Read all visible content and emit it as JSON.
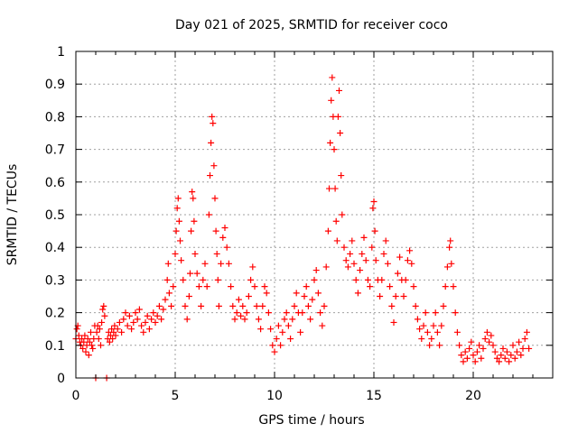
{
  "chart_data": {
    "type": "scatter",
    "title": "Day 021 of 2025, SRMTID for receiver coco",
    "xlabel": "GPS time / hours",
    "ylabel": "SRMTID / TECUs",
    "xlim": [
      0,
      24
    ],
    "ylim": [
      0,
      1
    ],
    "xticks": [
      0,
      5,
      10,
      15,
      20
    ],
    "yticks": [
      0,
      0.1,
      0.2,
      0.3,
      0.4,
      0.5,
      0.6,
      0.7,
      0.8,
      0.9,
      1
    ],
    "grid": true,
    "marker": "plus",
    "color": "#ff0000",
    "series": [
      {
        "name": "SRMTID",
        "points": [
          [
            0.0,
            0.12
          ],
          [
            0.05,
            0.15
          ],
          [
            0.1,
            0.16
          ],
          [
            0.15,
            0.13
          ],
          [
            0.2,
            0.11
          ],
          [
            0.25,
            0.1
          ],
          [
            0.3,
            0.12
          ],
          [
            0.35,
            0.09
          ],
          [
            0.4,
            0.11
          ],
          [
            0.45,
            0.13
          ],
          [
            0.5,
            0.08
          ],
          [
            0.55,
            0.1
          ],
          [
            0.6,
            0.12
          ],
          [
            0.65,
            0.07
          ],
          [
            0.7,
            0.11
          ],
          [
            0.75,
            0.14
          ],
          [
            0.8,
            0.1
          ],
          [
            0.85,
            0.09
          ],
          [
            0.9,
            0.12
          ],
          [
            0.95,
            0.16
          ],
          [
            1.0,
            0.0
          ],
          [
            1.05,
            0.14
          ],
          [
            1.1,
            0.16
          ],
          [
            1.15,
            0.12
          ],
          [
            1.2,
            0.15
          ],
          [
            1.25,
            0.1
          ],
          [
            1.3,
            0.17
          ],
          [
            1.35,
            0.21
          ],
          [
            1.4,
            0.22
          ],
          [
            1.45,
            0.19
          ],
          [
            1.55,
            0.0
          ],
          [
            1.6,
            0.12
          ],
          [
            1.65,
            0.14
          ],
          [
            1.7,
            0.11
          ],
          [
            1.75,
            0.13
          ],
          [
            1.8,
            0.15
          ],
          [
            1.85,
            0.12
          ],
          [
            1.9,
            0.14
          ],
          [
            1.95,
            0.16
          ],
          [
            2.0,
            0.13
          ],
          [
            2.1,
            0.15
          ],
          [
            2.2,
            0.17
          ],
          [
            2.3,
            0.14
          ],
          [
            2.4,
            0.18
          ],
          [
            2.5,
            0.2
          ],
          [
            2.6,
            0.16
          ],
          [
            2.7,
            0.19
          ],
          [
            2.8,
            0.15
          ],
          [
            2.9,
            0.17
          ],
          [
            3.0,
            0.2
          ],
          [
            3.1,
            0.18
          ],
          [
            3.2,
            0.21
          ],
          [
            3.3,
            0.16
          ],
          [
            3.4,
            0.14
          ],
          [
            3.5,
            0.17
          ],
          [
            3.6,
            0.19
          ],
          [
            3.7,
            0.15
          ],
          [
            3.8,
            0.18
          ],
          [
            3.9,
            0.2
          ],
          [
            4.0,
            0.17
          ],
          [
            4.1,
            0.19
          ],
          [
            4.2,
            0.22
          ],
          [
            4.3,
            0.18
          ],
          [
            4.4,
            0.21
          ],
          [
            4.5,
            0.24
          ],
          [
            4.6,
            0.3
          ],
          [
            4.65,
            0.35
          ],
          [
            4.7,
            0.26
          ],
          [
            4.8,
            0.22
          ],
          [
            4.9,
            0.28
          ],
          [
            5.0,
            0.38
          ],
          [
            5.05,
            0.45
          ],
          [
            5.1,
            0.52
          ],
          [
            5.15,
            0.55
          ],
          [
            5.2,
            0.48
          ],
          [
            5.25,
            0.42
          ],
          [
            5.3,
            0.36
          ],
          [
            5.4,
            0.3
          ],
          [
            5.5,
            0.22
          ],
          [
            5.6,
            0.18
          ],
          [
            5.7,
            0.25
          ],
          [
            5.75,
            0.32
          ],
          [
            5.8,
            0.45
          ],
          [
            5.85,
            0.57
          ],
          [
            5.9,
            0.55
          ],
          [
            5.95,
            0.48
          ],
          [
            6.0,
            0.38
          ],
          [
            6.1,
            0.32
          ],
          [
            6.2,
            0.28
          ],
          [
            6.3,
            0.22
          ],
          [
            6.4,
            0.3
          ],
          [
            6.5,
            0.35
          ],
          [
            6.6,
            0.28
          ],
          [
            6.7,
            0.5
          ],
          [
            6.75,
            0.62
          ],
          [
            6.8,
            0.72
          ],
          [
            6.85,
            0.8
          ],
          [
            6.9,
            0.78
          ],
          [
            6.95,
            0.65
          ],
          [
            7.0,
            0.55
          ],
          [
            7.05,
            0.45
          ],
          [
            7.1,
            0.38
          ],
          [
            7.15,
            0.3
          ],
          [
            7.2,
            0.22
          ],
          [
            7.3,
            0.35
          ],
          [
            7.4,
            0.43
          ],
          [
            7.5,
            0.46
          ],
          [
            7.6,
            0.4
          ],
          [
            7.7,
            0.35
          ],
          [
            7.8,
            0.28
          ],
          [
            7.9,
            0.22
          ],
          [
            8.0,
            0.18
          ],
          [
            8.1,
            0.2
          ],
          [
            8.2,
            0.24
          ],
          [
            8.3,
            0.19
          ],
          [
            8.4,
            0.22
          ],
          [
            8.5,
            0.18
          ],
          [
            8.6,
            0.2
          ],
          [
            8.7,
            0.25
          ],
          [
            8.8,
            0.3
          ],
          [
            8.9,
            0.34
          ],
          [
            9.0,
            0.28
          ],
          [
            9.1,
            0.22
          ],
          [
            9.2,
            0.18
          ],
          [
            9.3,
            0.15
          ],
          [
            9.4,
            0.22
          ],
          [
            9.5,
            0.28
          ],
          [
            9.6,
            0.26
          ],
          [
            9.7,
            0.2
          ],
          [
            9.8,
            0.15
          ],
          [
            9.9,
            0.1
          ],
          [
            10.0,
            0.08
          ],
          [
            10.1,
            0.12
          ],
          [
            10.2,
            0.16
          ],
          [
            10.3,
            0.1
          ],
          [
            10.4,
            0.14
          ],
          [
            10.5,
            0.18
          ],
          [
            10.6,
            0.2
          ],
          [
            10.7,
            0.16
          ],
          [
            10.8,
            0.12
          ],
          [
            10.9,
            0.18
          ],
          [
            11.0,
            0.22
          ],
          [
            11.1,
            0.26
          ],
          [
            11.2,
            0.2
          ],
          [
            11.3,
            0.14
          ],
          [
            11.4,
            0.2
          ],
          [
            11.5,
            0.25
          ],
          [
            11.6,
            0.28
          ],
          [
            11.7,
            0.22
          ],
          [
            11.8,
            0.18
          ],
          [
            11.9,
            0.24
          ],
          [
            12.0,
            0.3
          ],
          [
            12.1,
            0.33
          ],
          [
            12.2,
            0.26
          ],
          [
            12.3,
            0.2
          ],
          [
            12.4,
            0.16
          ],
          [
            12.5,
            0.22
          ],
          [
            12.6,
            0.34
          ],
          [
            12.7,
            0.45
          ],
          [
            12.75,
            0.58
          ],
          [
            12.8,
            0.72
          ],
          [
            12.85,
            0.85
          ],
          [
            12.9,
            0.92
          ],
          [
            12.95,
            0.8
          ],
          [
            13.0,
            0.7
          ],
          [
            13.05,
            0.58
          ],
          [
            13.1,
            0.48
          ],
          [
            13.15,
            0.42
          ],
          [
            13.2,
            0.8
          ],
          [
            13.25,
            0.88
          ],
          [
            13.3,
            0.75
          ],
          [
            13.35,
            0.62
          ],
          [
            13.4,
            0.5
          ],
          [
            13.5,
            0.4
          ],
          [
            13.6,
            0.36
          ],
          [
            13.7,
            0.34
          ],
          [
            13.8,
            0.38
          ],
          [
            13.9,
            0.42
          ],
          [
            14.0,
            0.35
          ],
          [
            14.1,
            0.3
          ],
          [
            14.2,
            0.26
          ],
          [
            14.3,
            0.33
          ],
          [
            14.4,
            0.38
          ],
          [
            14.5,
            0.43
          ],
          [
            14.6,
            0.36
          ],
          [
            14.7,
            0.3
          ],
          [
            14.8,
            0.28
          ],
          [
            14.9,
            0.4
          ],
          [
            14.95,
            0.52
          ],
          [
            15.0,
            0.54
          ],
          [
            15.05,
            0.45
          ],
          [
            15.1,
            0.36
          ],
          [
            15.2,
            0.3
          ],
          [
            15.3,
            0.25
          ],
          [
            15.4,
            0.3
          ],
          [
            15.5,
            0.38
          ],
          [
            15.6,
            0.42
          ],
          [
            15.7,
            0.35
          ],
          [
            15.8,
            0.28
          ],
          [
            15.9,
            0.22
          ],
          [
            16.0,
            0.17
          ],
          [
            16.1,
            0.25
          ],
          [
            16.2,
            0.32
          ],
          [
            16.3,
            0.37
          ],
          [
            16.4,
            0.3
          ],
          [
            16.5,
            0.25
          ],
          [
            16.6,
            0.3
          ],
          [
            16.7,
            0.36
          ],
          [
            16.8,
            0.39
          ],
          [
            16.9,
            0.35
          ],
          [
            17.0,
            0.28
          ],
          [
            17.1,
            0.22
          ],
          [
            17.2,
            0.18
          ],
          [
            17.3,
            0.15
          ],
          [
            17.4,
            0.12
          ],
          [
            17.5,
            0.16
          ],
          [
            17.6,
            0.2
          ],
          [
            17.7,
            0.14
          ],
          [
            17.8,
            0.1
          ],
          [
            17.9,
            0.12
          ],
          [
            18.0,
            0.16
          ],
          [
            18.1,
            0.2
          ],
          [
            18.2,
            0.14
          ],
          [
            18.3,
            0.1
          ],
          [
            18.4,
            0.16
          ],
          [
            18.5,
            0.22
          ],
          [
            18.6,
            0.28
          ],
          [
            18.7,
            0.34
          ],
          [
            18.8,
            0.4
          ],
          [
            18.85,
            0.42
          ],
          [
            18.9,
            0.35
          ],
          [
            19.0,
            0.28
          ],
          [
            19.1,
            0.2
          ],
          [
            19.2,
            0.14
          ],
          [
            19.3,
            0.1
          ],
          [
            19.4,
            0.07
          ],
          [
            19.5,
            0.05
          ],
          [
            19.6,
            0.08
          ],
          [
            19.7,
            0.06
          ],
          [
            19.8,
            0.09
          ],
          [
            19.9,
            0.11
          ],
          [
            20.0,
            0.07
          ],
          [
            20.1,
            0.05
          ],
          [
            20.2,
            0.08
          ],
          [
            20.3,
            0.1
          ],
          [
            20.4,
            0.06
          ],
          [
            20.5,
            0.09
          ],
          [
            20.6,
            0.12
          ],
          [
            20.7,
            0.14
          ],
          [
            20.8,
            0.11
          ],
          [
            20.9,
            0.13
          ],
          [
            21.0,
            0.1
          ],
          [
            21.1,
            0.08
          ],
          [
            21.2,
            0.06
          ],
          [
            21.3,
            0.05
          ],
          [
            21.4,
            0.07
          ],
          [
            21.5,
            0.09
          ],
          [
            21.6,
            0.06
          ],
          [
            21.7,
            0.08
          ],
          [
            21.8,
            0.05
          ],
          [
            21.9,
            0.07
          ],
          [
            22.0,
            0.1
          ],
          [
            22.1,
            0.06
          ],
          [
            22.2,
            0.08
          ],
          [
            22.3,
            0.11
          ],
          [
            22.4,
            0.07
          ],
          [
            22.5,
            0.09
          ],
          [
            22.6,
            0.12
          ],
          [
            22.7,
            0.14
          ],
          [
            22.8,
            0.09
          ]
        ]
      }
    ]
  }
}
